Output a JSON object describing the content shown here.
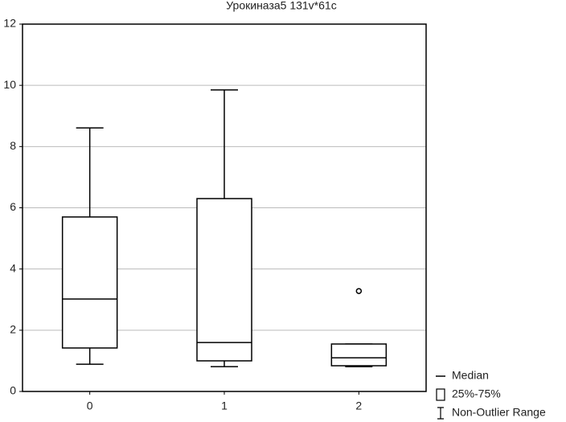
{
  "chart_data": {
    "type": "box",
    "title": "Урокиназа5 131v*61c",
    "categories": [
      "0",
      "1",
      "2"
    ],
    "boxes": [
      {
        "min": 0.89,
        "q1": 1.42,
        "median": 3.02,
        "q3": 5.7,
        "max": 8.61
      },
      {
        "min": 0.81,
        "q1": 1.0,
        "median": 1.6,
        "q3": 6.3,
        "max": 9.85
      },
      {
        "min": 0.81,
        "q1": 0.84,
        "median": 1.1,
        "q3": 1.55,
        "max": 1.55,
        "outliers": [
          3.28
        ]
      }
    ],
    "ylim": [
      0,
      12
    ],
    "yticks": [
      0,
      2,
      4,
      6,
      8,
      10,
      12
    ],
    "grid": true,
    "legend": [
      "Median",
      "25%-75%",
      "Non-Outlier Range"
    ],
    "legend_position": "bottom-right",
    "color": "#000000"
  }
}
